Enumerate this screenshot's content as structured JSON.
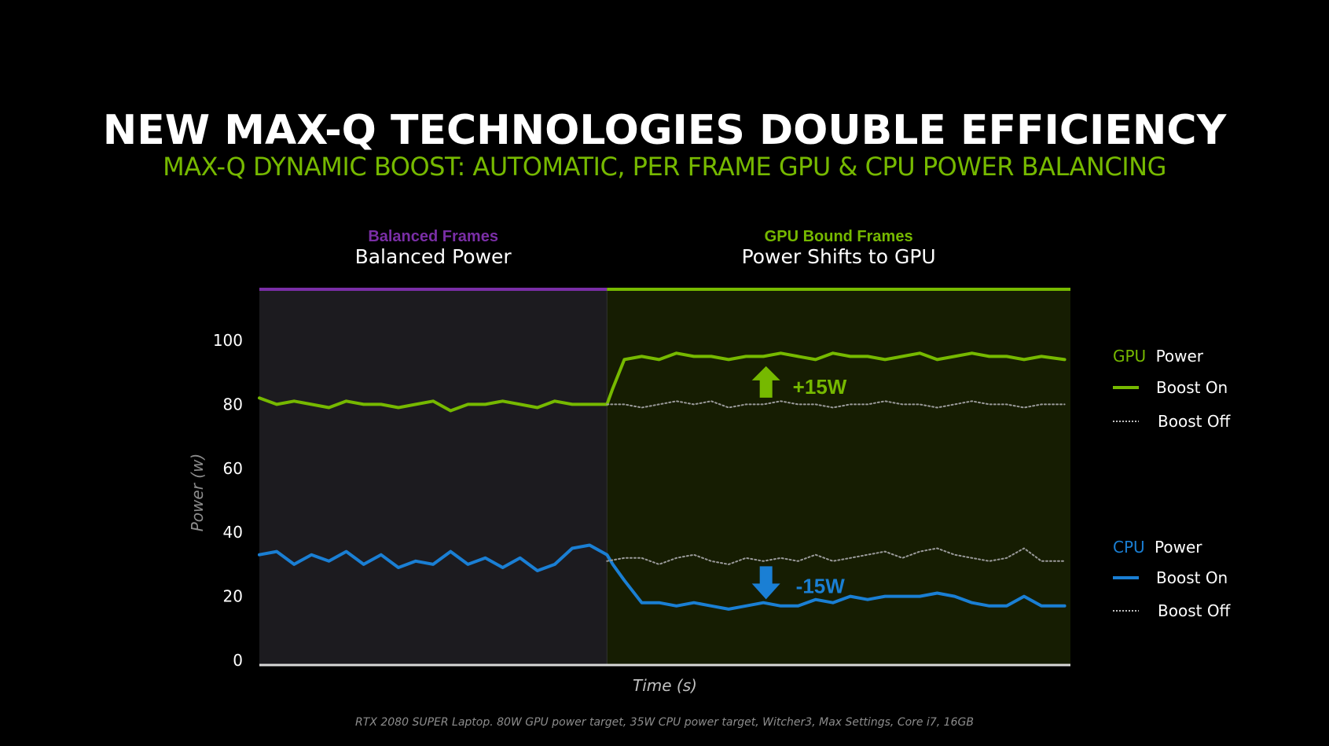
{
  "title": "NEW MAX-Q TECHNOLOGIES DOUBLE EFFICIENCY",
  "subtitle": "MAX-Q DYNAMIC BOOST: AUTOMATIC, PER FRAME GPU & CPU POWER BALANCING",
  "footnote": "RTX 2080 SUPER Laptop. 80W GPU power target, 35W CPU power target, Witcher3, Max Settings, Core i7, 16GB",
  "colors": {
    "gpu": "#76b900",
    "cpu": "#1a7fd4",
    "balanced": "#7a2ea6",
    "boost_off": "#9a9a9a",
    "background": "#000000"
  },
  "chart_data": {
    "type": "line",
    "xlabel": "Time (s)",
    "ylabel": "Power (w)",
    "ylim": [
      0,
      110
    ],
    "yticks": [
      0,
      20,
      40,
      60,
      80,
      100
    ],
    "x_range": [
      0,
      140
    ],
    "grid": false,
    "legend_position": "right",
    "regions": [
      {
        "top_label": "Balanced Frames",
        "label": "Balanced Power",
        "x_start": 0,
        "x_end": 60
      },
      {
        "top_label": "GPU Bound Frames",
        "label": "Power Shifts to GPU",
        "x_start": 60,
        "x_end": 140
      }
    ],
    "annotations": [
      {
        "text": "+15W",
        "x": 88,
        "y": 87,
        "direction": "up"
      },
      {
        "text": "-15W",
        "x": 88,
        "y": 24,
        "direction": "down"
      }
    ],
    "legend": {
      "gpu_heading_prefix": "GPU",
      "cpu_heading_prefix": "CPU",
      "heading_suffix": "Power",
      "boost_on": "Boost On",
      "boost_off": "Boost Off"
    },
    "series": [
      {
        "group": "GPU",
        "mode": "Boost On",
        "style": "solid",
        "x": [
          0,
          3,
          6,
          9,
          12,
          15,
          18,
          21,
          24,
          27,
          30,
          33,
          36,
          39,
          42,
          45,
          48,
          51,
          54,
          57,
          60,
          61,
          63,
          66,
          69,
          72,
          75,
          78,
          81,
          84,
          87,
          90,
          93,
          96,
          99,
          102,
          105,
          108,
          111,
          114,
          117,
          120,
          123,
          126,
          129,
          132,
          135,
          139
        ],
        "y": [
          82,
          80,
          81,
          80,
          79,
          81,
          80,
          80,
          79,
          80,
          81,
          78,
          80,
          80,
          81,
          80,
          79,
          81,
          80,
          80,
          80,
          85,
          94,
          95,
          94,
          96,
          95,
          95,
          94,
          95,
          95,
          96,
          95,
          94,
          96,
          95,
          95,
          94,
          95,
          96,
          94,
          95,
          96,
          95,
          95,
          94,
          95,
          94
        ]
      },
      {
        "group": "GPU",
        "mode": "Boost Off",
        "style": "dotted",
        "x": [
          60,
          63,
          66,
          69,
          72,
          75,
          78,
          81,
          84,
          87,
          90,
          93,
          96,
          99,
          102,
          105,
          108,
          111,
          114,
          117,
          120,
          123,
          126,
          129,
          132,
          135,
          139
        ],
        "y": [
          80,
          80,
          79,
          80,
          81,
          80,
          81,
          79,
          80,
          80,
          81,
          80,
          80,
          79,
          80,
          80,
          81,
          80,
          80,
          79,
          80,
          81,
          80,
          80,
          79,
          80,
          80
        ]
      },
      {
        "group": "CPU",
        "mode": "Boost On",
        "style": "solid",
        "x": [
          0,
          3,
          6,
          9,
          12,
          15,
          18,
          21,
          24,
          27,
          30,
          33,
          36,
          39,
          42,
          45,
          48,
          51,
          54,
          57,
          60,
          61,
          63,
          66,
          69,
          72,
          75,
          78,
          81,
          84,
          87,
          90,
          93,
          96,
          99,
          102,
          105,
          108,
          111,
          114,
          117,
          120,
          123,
          126,
          129,
          132,
          135,
          139
        ],
        "y": [
          33,
          34,
          30,
          33,
          31,
          34,
          30,
          33,
          29,
          31,
          30,
          34,
          30,
          32,
          29,
          32,
          28,
          30,
          35,
          36,
          33,
          30,
          25,
          18,
          18,
          17,
          18,
          17,
          16,
          17,
          18,
          17,
          17,
          19,
          18,
          20,
          19,
          20,
          20,
          20,
          21,
          20,
          18,
          17,
          17,
          20,
          17,
          17
        ]
      },
      {
        "group": "CPU",
        "mode": "Boost Off",
        "style": "dotted",
        "x": [
          60,
          63,
          66,
          69,
          72,
          75,
          78,
          81,
          84,
          87,
          90,
          93,
          96,
          99,
          102,
          105,
          108,
          111,
          114,
          117,
          120,
          123,
          126,
          129,
          132,
          135,
          139
        ],
        "y": [
          31,
          32,
          32,
          30,
          32,
          33,
          31,
          30,
          32,
          31,
          32,
          31,
          33,
          31,
          32,
          33,
          34,
          32,
          34,
          35,
          33,
          32,
          31,
          32,
          35,
          31,
          31
        ]
      }
    ]
  }
}
